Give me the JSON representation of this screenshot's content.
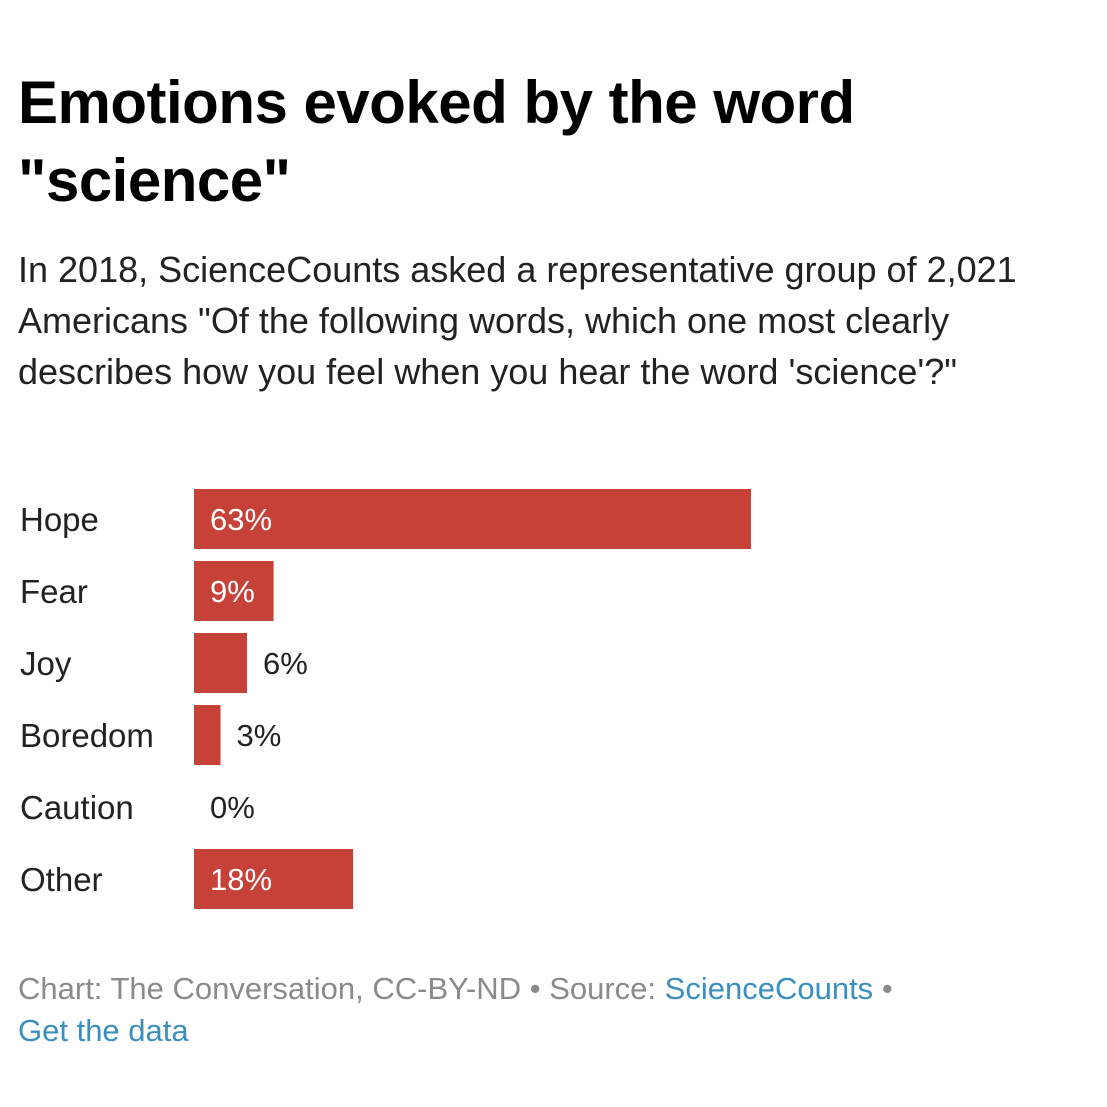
{
  "title": "Emotions evoked by the word \"science\"",
  "subtitle": "In 2018, ScienceCounts asked a representative group of 2,021 Americans \"Of the following words, which one most clearly describes how you feel when you hear the word 'science'?\"",
  "chart_data": {
    "type": "bar",
    "orientation": "horizontal",
    "categories": [
      "Hope",
      "Fear",
      "Joy",
      "Boredom",
      "Caution",
      "Other"
    ],
    "values": [
      63,
      9,
      6,
      3,
      0,
      18
    ],
    "value_labels": [
      "63%",
      "9%",
      "6%",
      "3%",
      "0%",
      "18%"
    ],
    "unit": "%",
    "xlim": [
      0,
      63
    ],
    "grid": false,
    "legend": "none",
    "bar_color": "#c64137"
  },
  "footer": {
    "chart_credit": "Chart: The Conversation, CC-BY-ND",
    "separator": "•",
    "source_prefix": "Source:",
    "source_link": "ScienceCounts",
    "data_link": "Get the data"
  },
  "colors": {
    "bar": "#c64137",
    "link": "#3a8fbf",
    "footer_text": "#8a8a8a"
  }
}
